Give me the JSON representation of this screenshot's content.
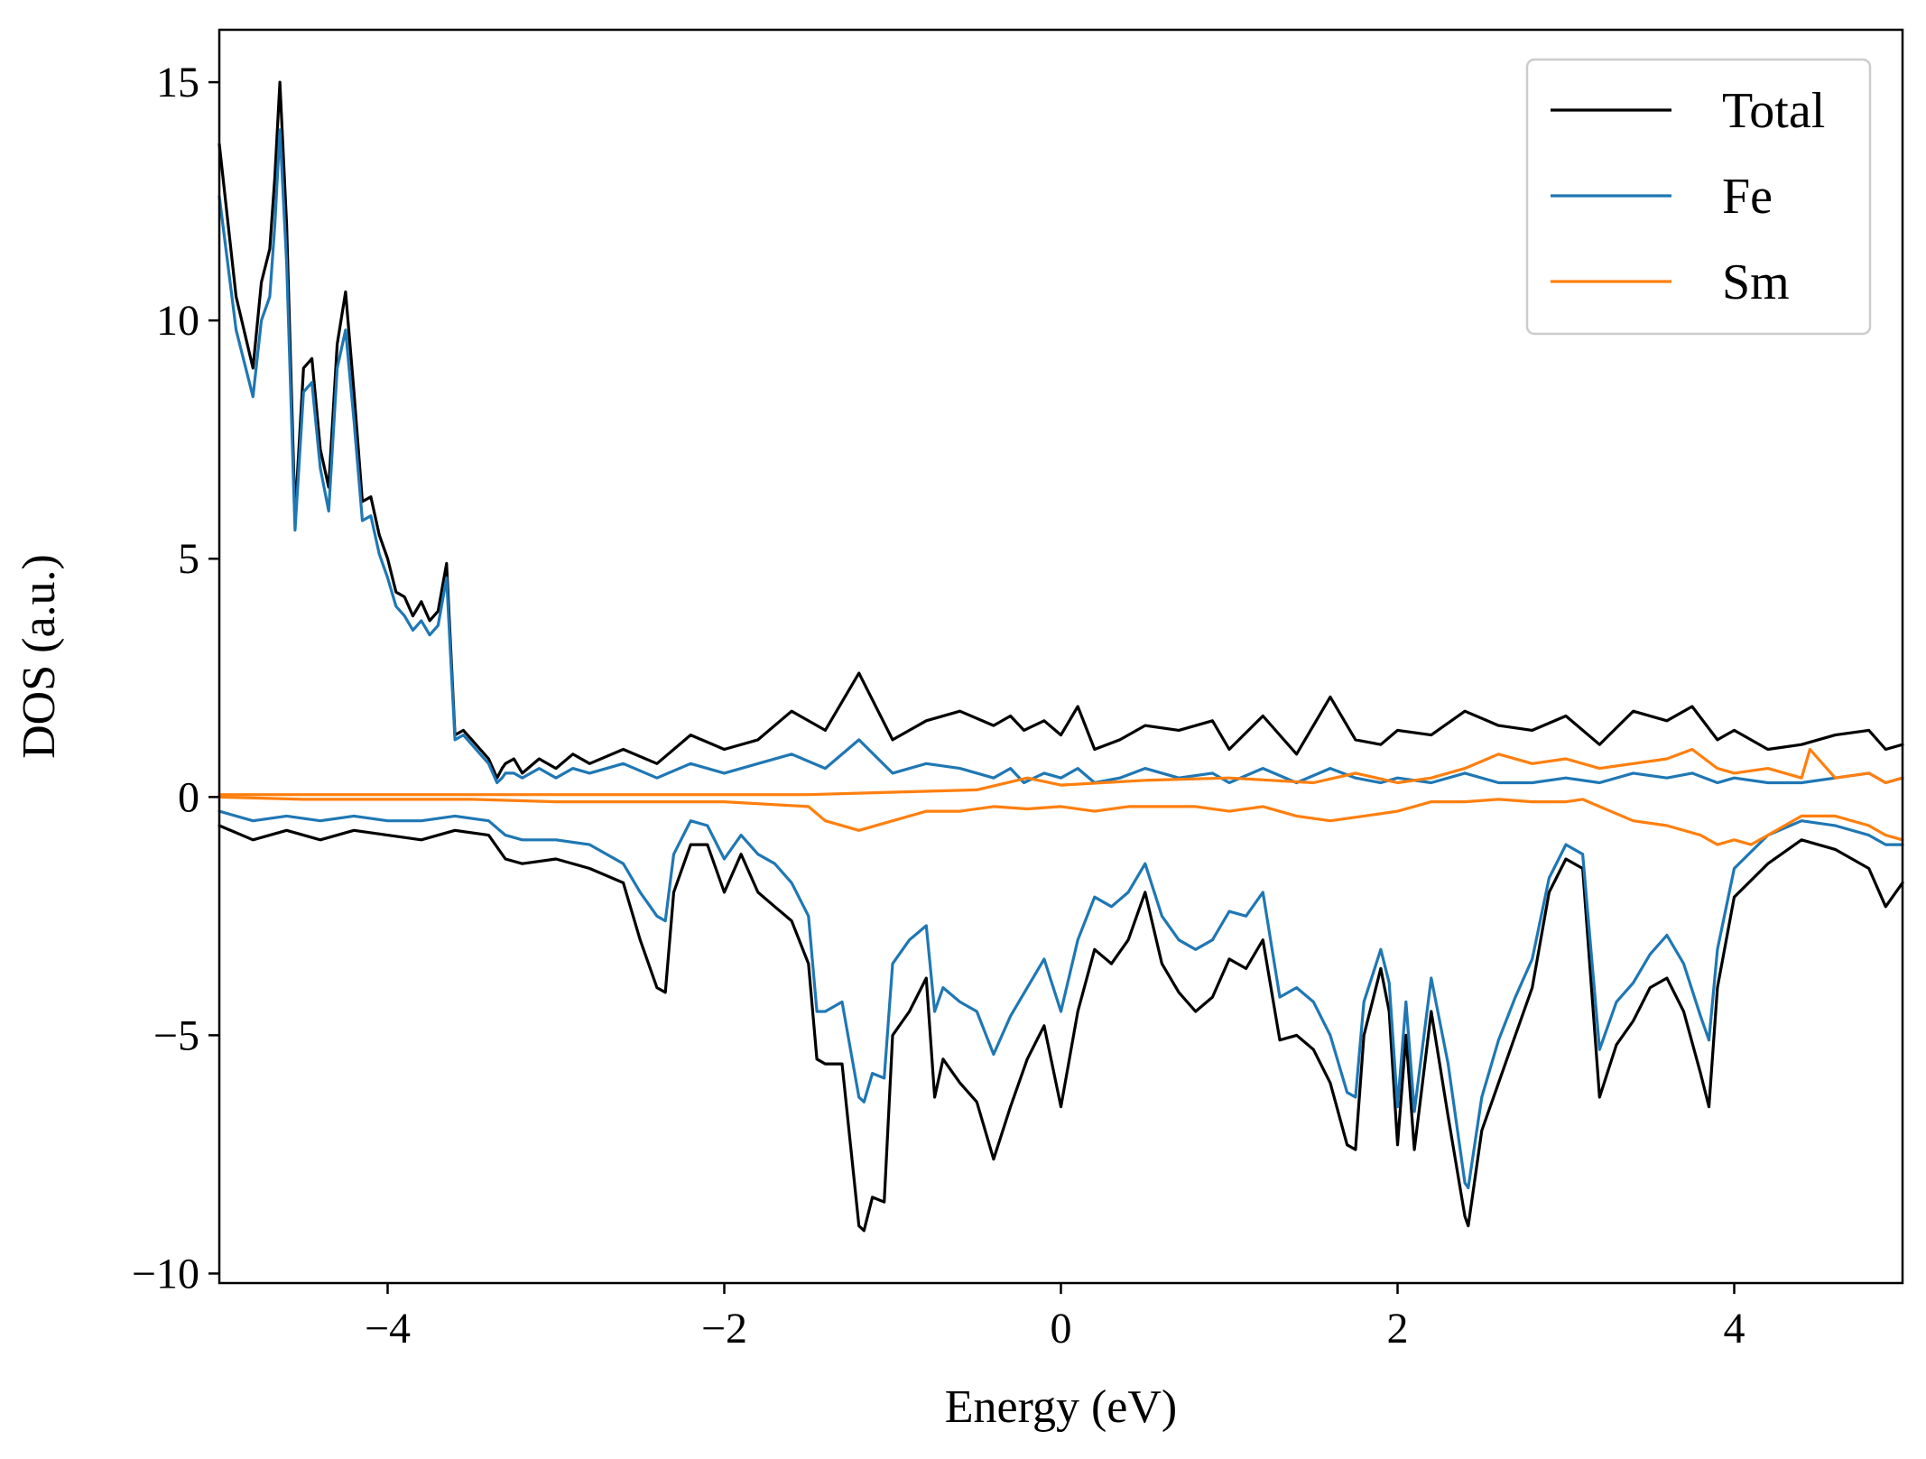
{
  "chart_data": {
    "type": "line",
    "title": "",
    "xlabel": "Energy (eV)",
    "ylabel": "DOS (a.u.)",
    "xlim": [
      -5,
      5
    ],
    "ylim": [
      -10.2,
      16.1
    ],
    "xticks": [
      -4,
      -2,
      0,
      2,
      4
    ],
    "xtick_labels": [
      "−4",
      "−2",
      "0",
      "2",
      "4"
    ],
    "yticks": [
      -10,
      -5,
      0,
      5,
      10,
      15
    ],
    "ytick_labels": [
      "−10",
      "−5",
      "0",
      "5",
      "10",
      "15"
    ],
    "grid": false,
    "legend_position": "upper right",
    "series": [
      {
        "name": "Total",
        "color": "#000000",
        "x": [
          -5.0,
          -4.9,
          -4.8,
          -4.75,
          -4.7,
          -4.67,
          -4.64,
          -4.6,
          -4.55,
          -4.5,
          -4.45,
          -4.4,
          -4.35,
          -4.3,
          -4.25,
          -4.2,
          -4.15,
          -4.1,
          -4.05,
          -4.0,
          -3.95,
          -3.9,
          -3.85,
          -3.8,
          -3.75,
          -3.7,
          -3.65,
          -3.6,
          -3.55,
          -3.5,
          -3.45,
          -3.4,
          -3.35,
          -3.32,
          -3.3,
          -3.25,
          -3.2,
          -3.1,
          -3.0,
          -2.9,
          -2.8,
          -2.6,
          -2.4,
          -2.2,
          -2.0,
          -1.8,
          -1.6,
          -1.4,
          -1.2,
          -1.0,
          -0.8,
          -0.6,
          -0.4,
          -0.3,
          -0.22,
          -0.1,
          0.0,
          0.1,
          0.2,
          0.35,
          0.5,
          0.7,
          0.9,
          1.0,
          1.2,
          1.4,
          1.6,
          1.75,
          1.9,
          2.0,
          2.2,
          2.4,
          2.6,
          2.8,
          3.0,
          3.2,
          3.4,
          3.6,
          3.75,
          3.9,
          4.0,
          4.2,
          4.4,
          4.6,
          4.8,
          4.9,
          5.0
        ],
        "y": [
          13.7,
          10.5,
          9.0,
          10.8,
          11.5,
          13.0,
          15.0,
          12.0,
          5.9,
          9.0,
          9.2,
          7.3,
          6.5,
          9.5,
          10.6,
          8.5,
          6.2,
          6.3,
          5.5,
          5.0,
          4.3,
          4.2,
          3.8,
          4.1,
          3.7,
          3.9,
          4.9,
          1.3,
          1.4,
          1.2,
          1.0,
          0.8,
          0.4,
          0.6,
          0.7,
          0.8,
          0.5,
          0.8,
          0.6,
          0.9,
          0.7,
          1.0,
          0.7,
          1.3,
          1.0,
          1.2,
          1.8,
          1.4,
          2.6,
          1.2,
          1.6,
          1.8,
          1.5,
          1.7,
          1.4,
          1.6,
          1.3,
          1.9,
          1.0,
          1.2,
          1.5,
          1.4,
          1.6,
          1.0,
          1.7,
          0.9,
          2.1,
          1.2,
          1.1,
          1.4,
          1.3,
          1.8,
          1.5,
          1.4,
          1.7,
          1.1,
          1.8,
          1.6,
          1.9,
          1.2,
          1.4,
          1.0,
          1.1,
          1.3,
          1.4,
          1.0,
          1.1
        ]
      },
      {
        "name": "Fe",
        "color": "#1f77b4",
        "x": [
          -5.0,
          -4.9,
          -4.8,
          -4.75,
          -4.7,
          -4.67,
          -4.64,
          -4.6,
          -4.55,
          -4.5,
          -4.45,
          -4.4,
          -4.35,
          -4.3,
          -4.25,
          -4.2,
          -4.15,
          -4.1,
          -4.05,
          -4.0,
          -3.95,
          -3.9,
          -3.85,
          -3.8,
          -3.75,
          -3.7,
          -3.65,
          -3.6,
          -3.55,
          -3.5,
          -3.45,
          -3.4,
          -3.35,
          -3.32,
          -3.3,
          -3.25,
          -3.2,
          -3.1,
          -3.0,
          -2.9,
          -2.8,
          -2.6,
          -2.4,
          -2.2,
          -2.0,
          -1.8,
          -1.6,
          -1.4,
          -1.2,
          -1.0,
          -0.8,
          -0.6,
          -0.4,
          -0.3,
          -0.22,
          -0.1,
          0.0,
          0.1,
          0.2,
          0.35,
          0.5,
          0.7,
          0.9,
          1.0,
          1.2,
          1.4,
          1.6,
          1.75,
          1.9,
          2.0,
          2.2,
          2.4,
          2.6,
          2.8,
          3.0,
          3.2,
          3.4,
          3.6,
          3.75,
          3.9,
          4.0,
          4.2,
          4.4,
          4.6,
          4.8,
          4.9,
          5.0
        ],
        "y": [
          12.6,
          9.8,
          8.4,
          10.0,
          10.5,
          12.0,
          14.0,
          11.2,
          5.6,
          8.5,
          8.7,
          6.9,
          6.0,
          9.0,
          9.8,
          7.9,
          5.8,
          5.9,
          5.1,
          4.6,
          4.0,
          3.8,
          3.5,
          3.7,
          3.4,
          3.6,
          4.6,
          1.2,
          1.3,
          1.1,
          0.9,
          0.7,
          0.3,
          0.4,
          0.5,
          0.5,
          0.4,
          0.6,
          0.4,
          0.6,
          0.5,
          0.7,
          0.4,
          0.7,
          0.5,
          0.7,
          0.9,
          0.6,
          1.2,
          0.5,
          0.7,
          0.6,
          0.4,
          0.6,
          0.3,
          0.5,
          0.4,
          0.6,
          0.3,
          0.4,
          0.6,
          0.4,
          0.5,
          0.3,
          0.6,
          0.3,
          0.6,
          0.4,
          0.3,
          0.4,
          0.3,
          0.5,
          0.3,
          0.3,
          0.4,
          0.3,
          0.5,
          0.4,
          0.5,
          0.3,
          0.4,
          0.3,
          0.3,
          0.4,
          0.5,
          0.3,
          0.4
        ]
      },
      {
        "name": "Sm",
        "color": "#ff7f0e",
        "x": [
          -5.0,
          -4.5,
          -4.0,
          -3.5,
          -3.0,
          -2.5,
          -2.0,
          -1.5,
          -1.0,
          -0.5,
          -0.2,
          0.0,
          0.5,
          1.0,
          1.5,
          1.75,
          2.0,
          2.2,
          2.4,
          2.6,
          2.8,
          3.0,
          3.2,
          3.4,
          3.6,
          3.75,
          3.9,
          4.0,
          4.2,
          4.4,
          4.45,
          4.6,
          4.8,
          4.9,
          5.0
        ],
        "y": [
          0.05,
          0.05,
          0.05,
          0.05,
          0.05,
          0.05,
          0.05,
          0.05,
          0.1,
          0.15,
          0.4,
          0.25,
          0.35,
          0.4,
          0.3,
          0.5,
          0.3,
          0.4,
          0.6,
          0.9,
          0.7,
          0.8,
          0.6,
          0.7,
          0.8,
          1.0,
          0.6,
          0.5,
          0.6,
          0.4,
          1.0,
          0.4,
          0.5,
          0.3,
          0.4
        ]
      },
      {
        "name": "Total",
        "color": "#000000",
        "x": [
          -5.0,
          -4.8,
          -4.6,
          -4.4,
          -4.2,
          -4.0,
          -3.8,
          -3.6,
          -3.4,
          -3.3,
          -3.2,
          -3.0,
          -2.8,
          -2.6,
          -2.5,
          -2.4,
          -2.35,
          -2.3,
          -2.2,
          -2.1,
          -2.0,
          -1.9,
          -1.8,
          -1.7,
          -1.6,
          -1.5,
          -1.45,
          -1.4,
          -1.3,
          -1.2,
          -1.17,
          -1.12,
          -1.05,
          -1.0,
          -0.9,
          -0.8,
          -0.75,
          -0.7,
          -0.6,
          -0.5,
          -0.4,
          -0.3,
          -0.2,
          -0.1,
          0.0,
          0.1,
          0.2,
          0.3,
          0.4,
          0.5,
          0.6,
          0.7,
          0.8,
          0.9,
          1.0,
          1.1,
          1.2,
          1.3,
          1.4,
          1.5,
          1.6,
          1.7,
          1.75,
          1.8,
          1.9,
          1.95,
          2.0,
          2.05,
          2.1,
          2.2,
          2.3,
          2.4,
          2.42,
          2.5,
          2.6,
          2.7,
          2.8,
          2.9,
          3.0,
          3.1,
          3.2,
          3.3,
          3.4,
          3.5,
          3.6,
          3.7,
          3.8,
          3.85,
          3.9,
          4.0,
          4.2,
          4.4,
          4.6,
          4.8,
          4.9,
          5.0
        ],
        "y": [
          -0.6,
          -0.9,
          -0.7,
          -0.9,
          -0.7,
          -0.8,
          -0.9,
          -0.7,
          -0.8,
          -1.3,
          -1.4,
          -1.3,
          -1.5,
          -1.8,
          -3.0,
          -4.0,
          -4.1,
          -2.0,
          -1.0,
          -1.0,
          -2.0,
          -1.2,
          -2.0,
          -2.3,
          -2.6,
          -3.5,
          -5.5,
          -5.6,
          -5.6,
          -9.0,
          -9.1,
          -8.4,
          -8.5,
          -5.0,
          -4.5,
          -3.8,
          -6.3,
          -5.5,
          -6.0,
          -6.4,
          -7.6,
          -6.5,
          -5.5,
          -4.8,
          -6.5,
          -4.5,
          -3.2,
          -3.5,
          -3.0,
          -2.0,
          -3.5,
          -4.1,
          -4.5,
          -4.2,
          -3.4,
          -3.6,
          -3.0,
          -5.1,
          -5.0,
          -5.3,
          -6.0,
          -7.3,
          -7.4,
          -5.0,
          -3.6,
          -4.5,
          -7.3,
          -5.0,
          -7.4,
          -4.5,
          -6.7,
          -8.8,
          -9.0,
          -7.0,
          -6.0,
          -5.0,
          -4.0,
          -2.0,
          -1.3,
          -1.5,
          -6.3,
          -5.2,
          -4.7,
          -4.0,
          -3.8,
          -4.5,
          -5.8,
          -6.5,
          -4.0,
          -2.1,
          -1.4,
          -0.9,
          -1.1,
          -1.5,
          -2.3,
          -1.8
        ]
      },
      {
        "name": "Fe",
        "color": "#1f77b4",
        "x": [
          -5.0,
          -4.8,
          -4.6,
          -4.4,
          -4.2,
          -4.0,
          -3.8,
          -3.6,
          -3.4,
          -3.3,
          -3.2,
          -3.0,
          -2.8,
          -2.6,
          -2.5,
          -2.4,
          -2.35,
          -2.3,
          -2.2,
          -2.1,
          -2.0,
          -1.9,
          -1.8,
          -1.7,
          -1.6,
          -1.5,
          -1.45,
          -1.4,
          -1.3,
          -1.2,
          -1.17,
          -1.12,
          -1.05,
          -1.0,
          -0.9,
          -0.8,
          -0.75,
          -0.7,
          -0.6,
          -0.5,
          -0.4,
          -0.3,
          -0.2,
          -0.1,
          0.0,
          0.1,
          0.2,
          0.3,
          0.4,
          0.5,
          0.6,
          0.7,
          0.8,
          0.9,
          1.0,
          1.1,
          1.2,
          1.3,
          1.4,
          1.5,
          1.6,
          1.7,
          1.75,
          1.8,
          1.9,
          1.95,
          2.0,
          2.05,
          2.1,
          2.2,
          2.3,
          2.4,
          2.42,
          2.5,
          2.6,
          2.7,
          2.8,
          2.9,
          3.0,
          3.1,
          3.2,
          3.3,
          3.4,
          3.5,
          3.6,
          3.7,
          3.8,
          3.85,
          3.9,
          4.0,
          4.2,
          4.4,
          4.6,
          4.8,
          4.9,
          5.0
        ],
        "y": [
          -0.3,
          -0.5,
          -0.4,
          -0.5,
          -0.4,
          -0.5,
          -0.5,
          -0.4,
          -0.5,
          -0.8,
          -0.9,
          -0.9,
          -1.0,
          -1.4,
          -2.0,
          -2.5,
          -2.6,
          -1.2,
          -0.5,
          -0.6,
          -1.3,
          -0.8,
          -1.2,
          -1.4,
          -1.8,
          -2.5,
          -4.5,
          -4.5,
          -4.3,
          -6.3,
          -6.4,
          -5.8,
          -5.9,
          -3.5,
          -3.0,
          -2.7,
          -4.5,
          -4.0,
          -4.3,
          -4.5,
          -5.4,
          -4.6,
          -4.0,
          -3.4,
          -4.5,
          -3.0,
          -2.1,
          -2.3,
          -2.0,
          -1.4,
          -2.5,
          -3.0,
          -3.2,
          -3.0,
          -2.4,
          -2.5,
          -2.0,
          -4.2,
          -4.0,
          -4.3,
          -5.0,
          -6.2,
          -6.3,
          -4.3,
          -3.2,
          -3.9,
          -6.5,
          -4.3,
          -6.6,
          -3.8,
          -5.6,
          -8.1,
          -8.2,
          -6.3,
          -5.1,
          -4.2,
          -3.4,
          -1.7,
          -1.0,
          -1.2,
          -5.3,
          -4.3,
          -3.9,
          -3.3,
          -2.9,
          -3.5,
          -4.6,
          -5.1,
          -3.2,
          -1.5,
          -0.8,
          -0.5,
          -0.6,
          -0.8,
          -1.0,
          -1.0
        ]
      },
      {
        "name": "Sm",
        "color": "#ff7f0e",
        "x": [
          -5.0,
          -4.5,
          -4.0,
          -3.5,
          -3.0,
          -2.5,
          -2.0,
          -1.5,
          -1.4,
          -1.2,
          -1.0,
          -0.8,
          -0.6,
          -0.4,
          -0.2,
          0.0,
          0.2,
          0.4,
          0.6,
          0.8,
          1.0,
          1.2,
          1.4,
          1.6,
          1.8,
          2.0,
          2.2,
          2.4,
          2.6,
          2.8,
          3.0,
          3.1,
          3.2,
          3.4,
          3.6,
          3.8,
          3.9,
          4.0,
          4.1,
          4.2,
          4.4,
          4.6,
          4.8,
          4.9,
          5.0
        ],
        "y": [
          0.0,
          -0.05,
          -0.05,
          -0.05,
          -0.1,
          -0.1,
          -0.1,
          -0.2,
          -0.5,
          -0.7,
          -0.5,
          -0.3,
          -0.3,
          -0.2,
          -0.25,
          -0.2,
          -0.3,
          -0.2,
          -0.2,
          -0.2,
          -0.3,
          -0.2,
          -0.4,
          -0.5,
          -0.4,
          -0.3,
          -0.1,
          -0.1,
          -0.05,
          -0.1,
          -0.1,
          -0.05,
          -0.2,
          -0.5,
          -0.6,
          -0.8,
          -1.0,
          -0.9,
          -1.0,
          -0.8,
          -0.4,
          -0.4,
          -0.6,
          -0.8,
          -0.9
        ]
      }
    ]
  }
}
